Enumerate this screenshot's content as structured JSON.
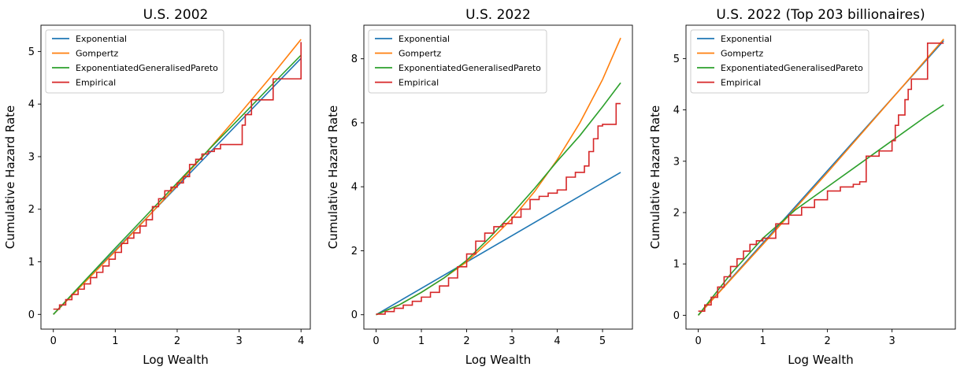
{
  "chart_data": [
    {
      "type": "line",
      "title": "U.S. 2002",
      "xlabel": "Log Wealth",
      "ylabel": "Cumulative Hazard Rate",
      "xlim": [
        -0.2,
        4.15
      ],
      "ylim": [
        -0.28,
        5.5
      ],
      "xticks": [
        0,
        1,
        2,
        3,
        4
      ],
      "yticks": [
        0,
        1,
        2,
        3,
        4,
        5
      ],
      "legend": "upper-left",
      "series": [
        {
          "name": "Exponential",
          "color": "#1f77b4",
          "style": "line",
          "x": [
            0,
            4
          ],
          "y": [
            0,
            4.87
          ]
        },
        {
          "name": "Gompertz",
          "color": "#ff7f0e",
          "style": "line",
          "x": [
            0,
            0.5,
            1,
            1.5,
            2,
            2.5,
            3,
            3.5,
            4
          ],
          "y": [
            0,
            0.6,
            1.2,
            1.82,
            2.46,
            3.12,
            3.8,
            4.5,
            5.23
          ]
        },
        {
          "name": "ExponentiatedGeneralisedPareto",
          "color": "#2ca02c",
          "style": "line",
          "x": [
            0,
            0.5,
            1,
            1.5,
            2,
            2.5,
            3,
            3.5,
            4
          ],
          "y": [
            0,
            0.63,
            1.26,
            1.88,
            2.5,
            3.12,
            3.72,
            4.33,
            4.93
          ]
        },
        {
          "name": "Empirical",
          "color": "#d62728",
          "style": "step",
          "x": [
            0,
            0.1,
            0.2,
            0.3,
            0.4,
            0.5,
            0.6,
            0.7,
            0.8,
            0.9,
            1.0,
            1.1,
            1.2,
            1.3,
            1.4,
            1.5,
            1.6,
            1.7,
            1.8,
            1.9,
            2.0,
            2.1,
            2.2,
            2.3,
            2.4,
            2.5,
            2.6,
            2.7,
            3.05,
            3.1,
            3.2,
            3.55,
            4.0
          ],
          "y": [
            0.1,
            0.18,
            0.28,
            0.38,
            0.48,
            0.58,
            0.7,
            0.8,
            0.92,
            1.05,
            1.18,
            1.35,
            1.45,
            1.55,
            1.68,
            1.8,
            2.05,
            2.2,
            2.35,
            2.42,
            2.5,
            2.62,
            2.85,
            2.95,
            3.05,
            3.1,
            3.15,
            3.23,
            3.6,
            3.8,
            4.08,
            4.48,
            5.18
          ]
        }
      ]
    },
    {
      "type": "line",
      "title": "U.S. 2022",
      "xlabel": "Log Wealth",
      "ylabel": "Cumulative Hazard Rate",
      "xlim": [
        -0.27,
        5.66
      ],
      "ylim": [
        -0.45,
        9.05
      ],
      "xticks": [
        0,
        1,
        2,
        3,
        4,
        5
      ],
      "yticks": [
        0,
        2,
        4,
        6,
        8
      ],
      "legend": "upper-left",
      "series": [
        {
          "name": "Exponential",
          "color": "#1f77b4",
          "style": "line",
          "x": [
            0,
            5.4
          ],
          "y": [
            0,
            4.45
          ]
        },
        {
          "name": "Gompertz",
          "color": "#ff7f0e",
          "style": "line",
          "x": [
            0,
            0.5,
            1,
            1.5,
            2,
            2.5,
            3,
            3.5,
            4,
            4.5,
            5,
            5.4
          ],
          "y": [
            0,
            0.3,
            0.7,
            1.15,
            1.65,
            2.3,
            3.0,
            3.85,
            4.85,
            6.0,
            7.35,
            8.65
          ]
        },
        {
          "name": "ExponentiatedGeneralisedPareto",
          "color": "#2ca02c",
          "style": "line",
          "x": [
            0,
            0.5,
            1,
            1.5,
            2,
            2.5,
            3,
            3.5,
            4,
            4.5,
            5,
            5.4
          ],
          "y": [
            0,
            0.3,
            0.7,
            1.15,
            1.7,
            2.4,
            3.15,
            3.95,
            4.8,
            5.6,
            6.5,
            7.25
          ]
        },
        {
          "name": "Empirical",
          "color": "#d62728",
          "style": "step",
          "x": [
            0,
            0.2,
            0.4,
            0.6,
            0.8,
            1.0,
            1.2,
            1.4,
            1.6,
            1.8,
            2.0,
            2.2,
            2.4,
            2.6,
            2.8,
            3.0,
            3.2,
            3.4,
            3.6,
            3.8,
            4.0,
            4.2,
            4.4,
            4.6,
            4.7,
            4.8,
            4.9,
            5.0,
            5.3,
            5.4
          ],
          "y": [
            0.02,
            0.1,
            0.2,
            0.3,
            0.42,
            0.55,
            0.7,
            0.9,
            1.15,
            1.5,
            1.9,
            2.3,
            2.55,
            2.75,
            2.85,
            3.05,
            3.3,
            3.6,
            3.7,
            3.8,
            3.9,
            4.3,
            4.45,
            4.65,
            5.1,
            5.5,
            5.9,
            5.95,
            6.6,
            6.6
          ]
        }
      ]
    },
    {
      "type": "line",
      "title": "U.S. 2022 (Top 203 billionaires)",
      "xlabel": "Log Wealth",
      "ylabel": "Cumulative Hazard Rate",
      "xlim": [
        -0.19,
        3.98
      ],
      "ylim": [
        -0.27,
        5.65
      ],
      "xticks": [
        0,
        1,
        2,
        3
      ],
      "yticks": [
        0,
        1,
        2,
        3,
        4,
        5
      ],
      "legend": "upper-left",
      "series": [
        {
          "name": "Exponential",
          "color": "#1f77b4",
          "style": "line",
          "x": [
            0,
            3.8
          ],
          "y": [
            0,
            5.35
          ]
        },
        {
          "name": "Gompertz",
          "color": "#ff7f0e",
          "style": "line",
          "x": [
            0,
            1,
            2,
            3,
            3.8
          ],
          "y": [
            0,
            1.38,
            2.78,
            4.22,
            5.38
          ]
        },
        {
          "name": "ExponentiatedGeneralisedPareto",
          "color": "#2ca02c",
          "style": "line",
          "x": [
            0,
            0.5,
            1,
            1.5,
            2,
            2.5,
            3,
            3.5,
            3.8
          ],
          "y": [
            0,
            0.8,
            1.5,
            2.05,
            2.5,
            2.95,
            3.4,
            3.85,
            4.1
          ]
        },
        {
          "name": "Empirical",
          "color": "#d62728",
          "style": "step",
          "x": [
            0,
            0.1,
            0.2,
            0.3,
            0.4,
            0.5,
            0.6,
            0.7,
            0.8,
            0.9,
            1.0,
            1.2,
            1.4,
            1.6,
            1.8,
            2.0,
            2.2,
            2.4,
            2.5,
            2.6,
            2.8,
            3.0,
            3.05,
            3.1,
            3.2,
            3.25,
            3.3,
            3.5,
            3.55,
            3.8
          ],
          "y": [
            0.08,
            0.2,
            0.35,
            0.55,
            0.75,
            0.95,
            1.1,
            1.25,
            1.38,
            1.45,
            1.5,
            1.78,
            1.95,
            2.1,
            2.25,
            2.42,
            2.5,
            2.55,
            2.6,
            3.1,
            3.2,
            3.4,
            3.7,
            3.9,
            4.2,
            4.4,
            4.6,
            4.6,
            5.3,
            5.3
          ]
        }
      ]
    }
  ]
}
